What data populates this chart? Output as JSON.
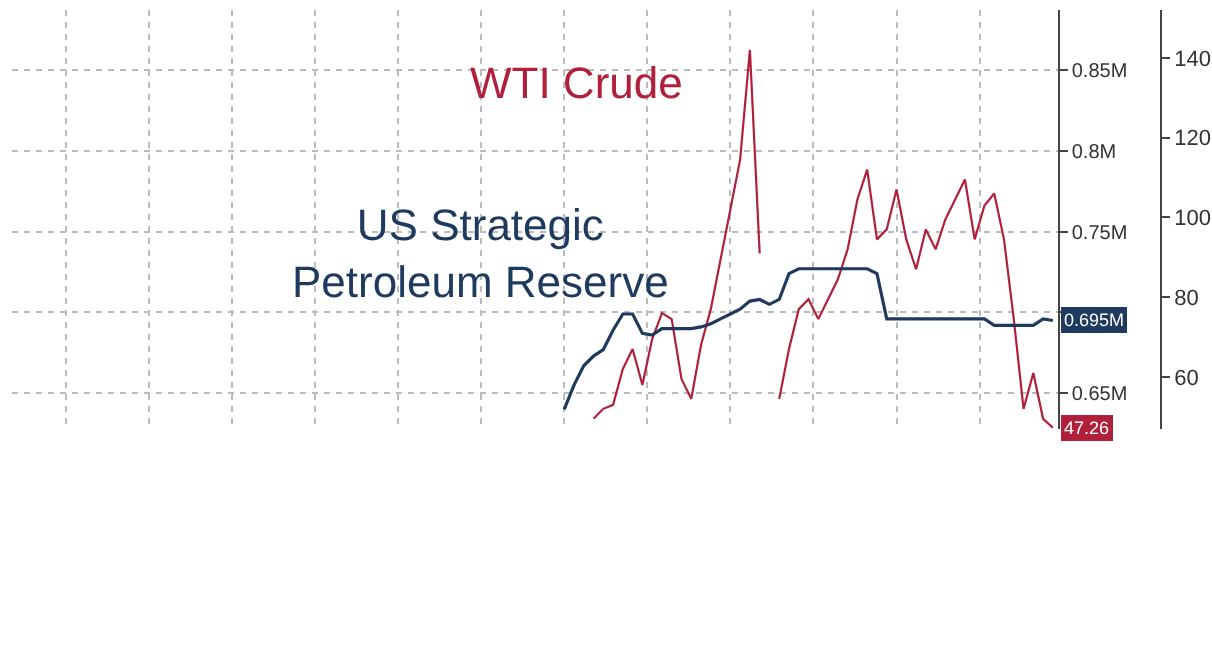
{
  "chart_data": {
    "type": "line",
    "categories": [
      null,
      null,
      null,
      null,
      null,
      null,
      null,
      null,
      null,
      null,
      null,
      null,
      null,
      null,
      null,
      null,
      null,
      null,
      null,
      null,
      null,
      null,
      null,
      null,
      null,
      null,
      null,
      null,
      null,
      null,
      null,
      null,
      null,
      null,
      null,
      null,
      null,
      null,
      null,
      null,
      null,
      null,
      null,
      null,
      null,
      null,
      null,
      null,
      null,
      null,
      null
    ],
    "series": [
      {
        "name": "WTI Crude",
        "color": "#b0203a",
        "values": [
          null,
          null,
          null,
          49.5,
          52,
          53,
          62,
          67,
          58,
          69.5,
          76,
          74.5,
          59.5,
          54.5,
          68,
          77,
          89.5,
          102,
          114.5,
          142,
          91,
          null,
          54.5,
          67,
          77,
          79.5,
          74.5,
          79.5,
          84.5,
          92,
          104.5,
          112,
          94.5,
          97,
          107,
          94.5,
          87,
          97,
          92,
          99.5,
          104.5,
          109.5,
          94.5,
          103,
          106,
          94.5,
          74.5,
          52,
          61,
          49.5,
          47.26
        ],
        "value_labels": [
          null,
          null,
          null,
          null,
          null,
          null,
          null,
          null,
          null,
          null,
          null,
          null,
          null,
          null,
          null,
          null,
          null,
          null,
          null,
          null,
          null,
          null,
          null,
          null,
          null,
          null,
          null,
          null,
          null,
          null,
          null,
          null,
          null,
          null,
          null,
          null,
          null,
          null,
          null,
          null,
          null,
          null,
          null,
          null,
          null,
          null,
          null,
          null,
          null,
          null,
          "47.26"
        ]
      },
      {
        "name": "US Strategic\nPetroleum Reserve",
        "color": "#1f3a5f",
        "axis": "y2",
        "values": [
          0.64,
          0.655,
          0.667,
          0.673,
          0.677,
          0.689,
          0.699,
          0.699,
          0.687,
          0.686,
          0.69,
          0.69,
          0.69,
          0.69,
          0.691,
          0.693,
          0.696,
          0.699,
          0.702,
          0.707,
          0.708,
          0.705,
          0.708,
          0.724,
          0.727,
          0.727,
          0.727,
          0.727,
          0.727,
          0.727,
          0.727,
          0.727,
          0.724,
          0.696,
          0.696,
          0.696,
          0.696,
          0.696,
          0.696,
          0.696,
          0.696,
          0.696,
          0.696,
          0.696,
          0.692,
          0.692,
          0.692,
          0.692,
          0.692,
          0.696,
          0.695
        ],
        "value_labels": [
          null,
          null,
          null,
          null,
          null,
          null,
          null,
          null,
          null,
          null,
          null,
          null,
          null,
          null,
          null,
          null,
          null,
          null,
          null,
          null,
          null,
          null,
          null,
          null,
          null,
          null,
          null,
          null,
          null,
          null,
          null,
          null,
          null,
          null,
          null,
          null,
          null,
          null,
          null,
          null,
          null,
          null,
          null,
          null,
          null,
          null,
          null,
          null,
          null,
          null,
          "0.695M"
        ]
      }
    ],
    "ylim": [
      47,
      152
    ],
    "yticks": [
      60,
      80,
      100,
      120,
      140
    ],
    "y2lim": [
      0.628,
      0.887
    ],
    "y2ticks": [
      {
        "value": 0.65,
        "label": "0.65M"
      },
      {
        "value": 0.7,
        "label": null
      },
      {
        "value": 0.75,
        "label": "0.75M"
      },
      {
        "value": 0.8,
        "label": "0.8M"
      },
      {
        "value": 0.85,
        "label": "0.85M"
      }
    ],
    "grid": true,
    "legend": false
  }
}
